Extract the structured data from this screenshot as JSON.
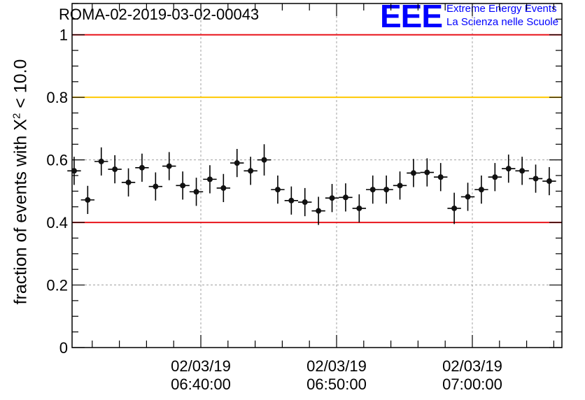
{
  "header": {
    "title": "ROMA-02-2019-03-02-00043",
    "logo_text": "EEE",
    "logo_line1": "Extreme Energy Events",
    "logo_line2": "La Scienza nelle Scuole"
  },
  "chart_data": {
    "type": "scatter",
    "ylabel_prefix": "fraction of events with X",
    "ylabel_sup": "2",
    "ylabel_suffix": " < 10.0",
    "ylim": [
      0,
      1.1
    ],
    "y_ticks": [
      0,
      0.2,
      0.4,
      0.6,
      0.8,
      1
    ],
    "y_tick_labels": [
      "0",
      "0.2",
      "0.4",
      "0.6",
      "0.8",
      "1"
    ],
    "x_ticks": [
      {
        "date": "02/03/19",
        "time": "06:40:00"
      },
      {
        "date": "02/03/19",
        "time": "06:50:00"
      },
      {
        "date": "02/03/19",
        "time": "07:00:00"
      }
    ],
    "grid": true,
    "reference_lines": [
      {
        "y": 1.0,
        "color": "#e8141b"
      },
      {
        "y": 0.8,
        "color": "#ffc800"
      },
      {
        "y": 0.4,
        "color": "#e8141b"
      }
    ],
    "x_labels_min": [
      "06:30:40",
      "06:31:40",
      "06:32:40",
      "06:33:40",
      "06:34:40",
      "06:35:40",
      "06:36:40",
      "06:37:40",
      "06:38:40",
      "06:39:40",
      "06:40:40",
      "06:41:40",
      "06:42:40",
      "06:43:40",
      "06:44:40",
      "06:45:40",
      "06:46:40",
      "06:47:40",
      "06:48:40",
      "06:49:40",
      "06:50:40",
      "06:51:40",
      "06:52:40",
      "06:53:40",
      "06:54:40",
      "06:55:40",
      "06:56:40",
      "06:57:40",
      "06:58:40",
      "06:59:40",
      "07:00:40",
      "07:01:40",
      "07:02:40",
      "07:03:40",
      "07:04:40",
      "07:05:40"
    ],
    "values": [
      0.565,
      0.472,
      0.595,
      0.57,
      0.528,
      0.575,
      0.515,
      0.58,
      0.518,
      0.498,
      0.538,
      0.51,
      0.59,
      0.565,
      0.6,
      0.505,
      0.47,
      0.465,
      0.437,
      0.478,
      0.48,
      0.445,
      0.505,
      0.505,
      0.518,
      0.558,
      0.56,
      0.545,
      0.445,
      0.482,
      0.505,
      0.545,
      0.572,
      0.565,
      0.54,
      0.532
    ],
    "y_errors": [
      0.045,
      0.045,
      0.045,
      0.045,
      0.045,
      0.045,
      0.045,
      0.045,
      0.045,
      0.045,
      0.045,
      0.045,
      0.045,
      0.045,
      0.05,
      0.045,
      0.045,
      0.045,
      0.045,
      0.045,
      0.045,
      0.045,
      0.045,
      0.045,
      0.045,
      0.045,
      0.045,
      0.045,
      0.05,
      0.045,
      0.045,
      0.045,
      0.045,
      0.045,
      0.045,
      0.045
    ],
    "marker_color": "#111111"
  }
}
